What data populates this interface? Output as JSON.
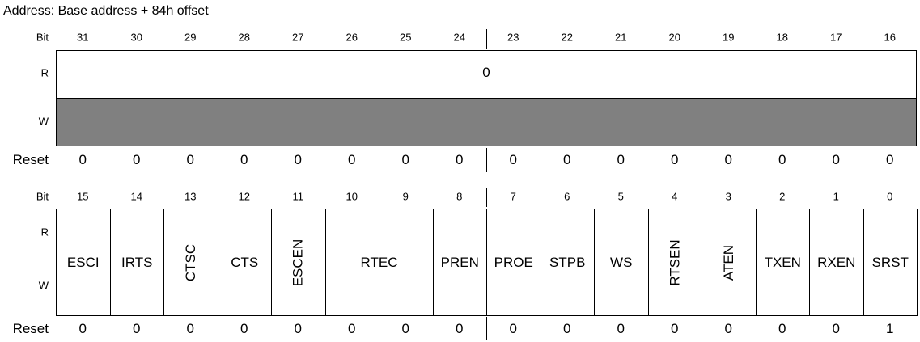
{
  "title": "Address: Base address + 84h offset",
  "row_labels": {
    "bit": "Bit",
    "read": "R",
    "write": "W",
    "reset": "Reset"
  },
  "upper": {
    "bits": [
      31,
      30,
      29,
      28,
      27,
      26,
      25,
      24,
      23,
      22,
      21,
      20,
      19,
      18,
      17,
      16
    ],
    "read_value": 0,
    "reset": [
      0,
      0,
      0,
      0,
      0,
      0,
      0,
      0,
      0,
      0,
      0,
      0,
      0,
      0,
      0,
      0
    ]
  },
  "lower": {
    "bits": [
      15,
      14,
      13,
      12,
      11,
      10,
      9,
      8,
      7,
      6,
      5,
      4,
      3,
      2,
      1,
      0
    ],
    "fields": [
      {
        "name": "ESCI",
        "msb": 15,
        "lsb": 15,
        "vertical": false
      },
      {
        "name": "IRTS",
        "msb": 14,
        "lsb": 14,
        "vertical": false
      },
      {
        "name": "CTSC",
        "msb": 13,
        "lsb": 13,
        "vertical": true
      },
      {
        "name": "CTS",
        "msb": 12,
        "lsb": 12,
        "vertical": false
      },
      {
        "name": "ESCEN",
        "msb": 11,
        "lsb": 11,
        "vertical": true
      },
      {
        "name": "RTEC",
        "msb": 10,
        "lsb": 9,
        "vertical": false
      },
      {
        "name": "PREN",
        "msb": 8,
        "lsb": 8,
        "vertical": false
      },
      {
        "name": "PROE",
        "msb": 7,
        "lsb": 7,
        "vertical": false
      },
      {
        "name": "STPB",
        "msb": 6,
        "lsb": 6,
        "vertical": false
      },
      {
        "name": "WS",
        "msb": 5,
        "lsb": 5,
        "vertical": false
      },
      {
        "name": "RTSEN",
        "msb": 4,
        "lsb": 4,
        "vertical": true
      },
      {
        "name": "ATEN",
        "msb": 3,
        "lsb": 3,
        "vertical": true
      },
      {
        "name": "TXEN",
        "msb": 2,
        "lsb": 2,
        "vertical": false
      },
      {
        "name": "RXEN",
        "msb": 1,
        "lsb": 1,
        "vertical": false
      },
      {
        "name": "SRST",
        "msb": 0,
        "lsb": 0,
        "vertical": false
      }
    ],
    "reset": [
      0,
      0,
      0,
      0,
      0,
      0,
      0,
      0,
      0,
      0,
      0,
      0,
      0,
      0,
      0,
      1
    ]
  }
}
